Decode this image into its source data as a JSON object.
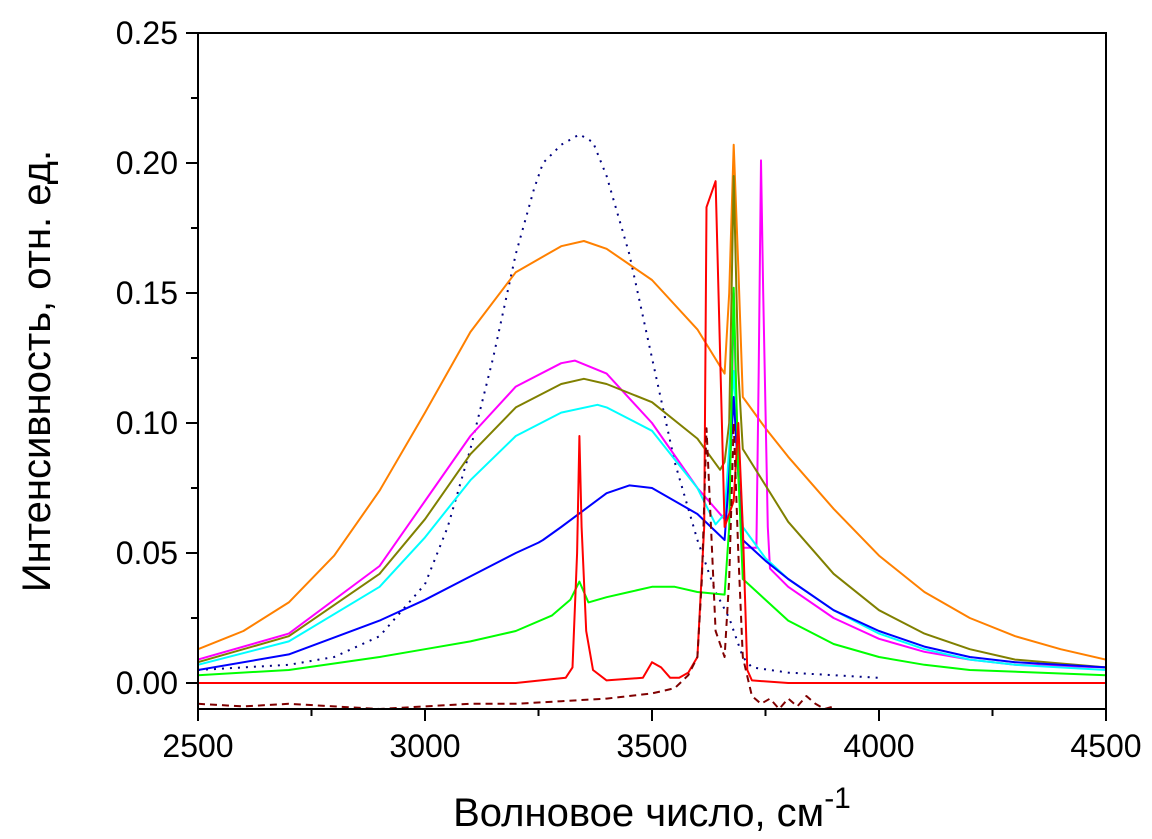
{
  "chart_data": {
    "type": "line",
    "xlabel": "Волновое число, см",
    "xlabel_superscript": "-1",
    "ylabel": "Интенсивность, отн. ед.",
    "xlim": [
      2500,
      4500
    ],
    "ylim": [
      -0.01,
      0.25
    ],
    "x_ticks": [
      2500,
      3000,
      3500,
      4000,
      4500
    ],
    "x_tick_labels": [
      "2500",
      "3000",
      "3500",
      "4000",
      "4500"
    ],
    "y_ticks": [
      0.0,
      0.05,
      0.1,
      0.15,
      0.2,
      0.25
    ],
    "y_tick_labels": [
      "0.00",
      "0.05",
      "0.10",
      "0.15",
      "0.20",
      "0.25"
    ],
    "grid": false,
    "legend": "none",
    "series": [
      {
        "color": "#000080",
        "style": "dotted",
        "points": [
          [
            2500,
            0.005
          ],
          [
            2700,
            0.007
          ],
          [
            2800,
            0.01
          ],
          [
            2900,
            0.018
          ],
          [
            3000,
            0.038
          ],
          [
            3050,
            0.06
          ],
          [
            3100,
            0.09
          ],
          [
            3150,
            0.125
          ],
          [
            3200,
            0.165
          ],
          [
            3240,
            0.19
          ],
          [
            3260,
            0.2
          ],
          [
            3300,
            0.207
          ],
          [
            3340,
            0.211
          ],
          [
            3370,
            0.208
          ],
          [
            3400,
            0.195
          ],
          [
            3450,
            0.165
          ],
          [
            3500,
            0.125
          ],
          [
            3550,
            0.085
          ],
          [
            3600,
            0.055
          ],
          [
            3640,
            0.035
          ],
          [
            3670,
            0.025
          ],
          [
            3690,
            0.015
          ],
          [
            3700,
            0.01
          ],
          [
            3720,
            0.006
          ],
          [
            3760,
            0.005
          ],
          [
            3800,
            0.004
          ],
          [
            3900,
            0.003
          ],
          [
            4000,
            0.002
          ]
        ]
      },
      {
        "color": "#ff8000",
        "style": "solid",
        "points": [
          [
            2500,
            0.013
          ],
          [
            2600,
            0.02
          ],
          [
            2700,
            0.031
          ],
          [
            2800,
            0.049
          ],
          [
            2900,
            0.074
          ],
          [
            3000,
            0.104
          ],
          [
            3100,
            0.135
          ],
          [
            3200,
            0.158
          ],
          [
            3300,
            0.168
          ],
          [
            3350,
            0.17
          ],
          [
            3400,
            0.167
          ],
          [
            3500,
            0.155
          ],
          [
            3600,
            0.136
          ],
          [
            3660,
            0.119
          ],
          [
            3670,
            0.15
          ],
          [
            3680,
            0.207
          ],
          [
            3690,
            0.16
          ],
          [
            3700,
            0.11
          ],
          [
            3750,
            0.098
          ],
          [
            3800,
            0.087
          ],
          [
            3900,
            0.067
          ],
          [
            4000,
            0.049
          ],
          [
            4100,
            0.035
          ],
          [
            4200,
            0.025
          ],
          [
            4300,
            0.018
          ],
          [
            4400,
            0.013
          ],
          [
            4500,
            0.009
          ]
        ]
      },
      {
        "color": "#ff00ff",
        "style": "solid",
        "points": [
          [
            2500,
            0.009
          ],
          [
            2700,
            0.019
          ],
          [
            2900,
            0.045
          ],
          [
            3000,
            0.07
          ],
          [
            3100,
            0.095
          ],
          [
            3200,
            0.114
          ],
          [
            3300,
            0.123
          ],
          [
            3330,
            0.124
          ],
          [
            3400,
            0.119
          ],
          [
            3500,
            0.1
          ],
          [
            3600,
            0.075
          ],
          [
            3660,
            0.063
          ],
          [
            3675,
            0.1
          ],
          [
            3680,
            0.15
          ],
          [
            3685,
            0.11
          ],
          [
            3700,
            0.052
          ],
          [
            3720,
            0.052
          ],
          [
            3730,
            0.052
          ],
          [
            3735,
            0.12
          ],
          [
            3740,
            0.201
          ],
          [
            3745,
            0.15
          ],
          [
            3755,
            0.06
          ],
          [
            3760,
            0.044
          ],
          [
            3800,
            0.037
          ],
          [
            3900,
            0.025
          ],
          [
            4000,
            0.017
          ],
          [
            4100,
            0.012
          ],
          [
            4200,
            0.009
          ],
          [
            4300,
            0.007
          ],
          [
            4500,
            0.006
          ]
        ]
      },
      {
        "color": "#808000",
        "style": "solid",
        "points": [
          [
            2500,
            0.008
          ],
          [
            2700,
            0.018
          ],
          [
            2900,
            0.042
          ],
          [
            3000,
            0.063
          ],
          [
            3100,
            0.088
          ],
          [
            3200,
            0.106
          ],
          [
            3300,
            0.115
          ],
          [
            3350,
            0.117
          ],
          [
            3400,
            0.115
          ],
          [
            3500,
            0.108
          ],
          [
            3600,
            0.094
          ],
          [
            3650,
            0.082
          ],
          [
            3660,
            0.085
          ],
          [
            3670,
            0.1
          ],
          [
            3680,
            0.195
          ],
          [
            3690,
            0.12
          ],
          [
            3700,
            0.09
          ],
          [
            3800,
            0.062
          ],
          [
            3900,
            0.042
          ],
          [
            4000,
            0.028
          ],
          [
            4100,
            0.019
          ],
          [
            4200,
            0.013
          ],
          [
            4300,
            0.009
          ],
          [
            4500,
            0.006
          ]
        ]
      },
      {
        "color": "#00ffff",
        "style": "solid",
        "points": [
          [
            2500,
            0.007
          ],
          [
            2700,
            0.016
          ],
          [
            2900,
            0.037
          ],
          [
            3000,
            0.056
          ],
          [
            3100,
            0.078
          ],
          [
            3200,
            0.095
          ],
          [
            3300,
            0.104
          ],
          [
            3380,
            0.107
          ],
          [
            3400,
            0.106
          ],
          [
            3500,
            0.097
          ],
          [
            3600,
            0.075
          ],
          [
            3640,
            0.061
          ],
          [
            3660,
            0.065
          ],
          [
            3670,
            0.09
          ],
          [
            3680,
            0.12
          ],
          [
            3690,
            0.09
          ],
          [
            3700,
            0.06
          ],
          [
            3750,
            0.048
          ],
          [
            3800,
            0.04
          ],
          [
            3900,
            0.028
          ],
          [
            4000,
            0.019
          ],
          [
            4100,
            0.013
          ],
          [
            4200,
            0.009
          ],
          [
            4300,
            0.007
          ],
          [
            4500,
            0.005
          ]
        ]
      },
      {
        "color": "#0000ff",
        "style": "solid",
        "points": [
          [
            2500,
            0.005
          ],
          [
            2700,
            0.011
          ],
          [
            2900,
            0.024
          ],
          [
            3000,
            0.032
          ],
          [
            3100,
            0.041
          ],
          [
            3200,
            0.05
          ],
          [
            3250,
            0.054
          ],
          [
            3260,
            0.055
          ],
          [
            3300,
            0.06
          ],
          [
            3400,
            0.073
          ],
          [
            3450,
            0.076
          ],
          [
            3500,
            0.075
          ],
          [
            3600,
            0.065
          ],
          [
            3660,
            0.055
          ],
          [
            3670,
            0.08
          ],
          [
            3680,
            0.11
          ],
          [
            3690,
            0.08
          ],
          [
            3700,
            0.055
          ],
          [
            3750,
            0.047
          ],
          [
            3800,
            0.04
          ],
          [
            3900,
            0.028
          ],
          [
            4000,
            0.02
          ],
          [
            4100,
            0.014
          ],
          [
            4200,
            0.01
          ],
          [
            4300,
            0.008
          ],
          [
            4500,
            0.006
          ]
        ]
      },
      {
        "color": "#00ff00",
        "style": "solid",
        "points": [
          [
            2500,
            0.003
          ],
          [
            2700,
            0.005
          ],
          [
            2900,
            0.01
          ],
          [
            3000,
            0.013
          ],
          [
            3100,
            0.016
          ],
          [
            3200,
            0.02
          ],
          [
            3280,
            0.026
          ],
          [
            3320,
            0.032
          ],
          [
            3340,
            0.039
          ],
          [
            3360,
            0.031
          ],
          [
            3400,
            0.033
          ],
          [
            3450,
            0.035
          ],
          [
            3500,
            0.037
          ],
          [
            3550,
            0.037
          ],
          [
            3600,
            0.035
          ],
          [
            3660,
            0.034
          ],
          [
            3670,
            0.06
          ],
          [
            3680,
            0.152
          ],
          [
            3690,
            0.08
          ],
          [
            3700,
            0.04
          ],
          [
            3800,
            0.024
          ],
          [
            3900,
            0.015
          ],
          [
            4000,
            0.01
          ],
          [
            4100,
            0.007
          ],
          [
            4200,
            0.005
          ],
          [
            4500,
            0.003
          ]
        ]
      },
      {
        "color": "#ff0000",
        "style": "solid",
        "points": [
          [
            2500,
            0.0
          ],
          [
            3200,
            0.0
          ],
          [
            3310,
            0.002
          ],
          [
            3325,
            0.006
          ],
          [
            3335,
            0.05
          ],
          [
            3340,
            0.095
          ],
          [
            3345,
            0.06
          ],
          [
            3355,
            0.02
          ],
          [
            3370,
            0.005
          ],
          [
            3400,
            0.001
          ],
          [
            3480,
            0.002
          ],
          [
            3500,
            0.008
          ],
          [
            3520,
            0.006
          ],
          [
            3540,
            0.002
          ],
          [
            3560,
            0.002
          ],
          [
            3580,
            0.004
          ],
          [
            3600,
            0.01
          ],
          [
            3615,
            0.06
          ],
          [
            3620,
            0.183
          ],
          [
            3640,
            0.193
          ],
          [
            3660,
            0.06
          ],
          [
            3680,
            0.07
          ],
          [
            3690,
            0.1
          ],
          [
            3700,
            0.06
          ],
          [
            3710,
            0.005
          ],
          [
            3720,
            0.001
          ],
          [
            3800,
            0.0
          ],
          [
            4500,
            0.0
          ]
        ]
      },
      {
        "color": "#800000",
        "style": "dashed",
        "points": [
          [
            2500,
            -0.008
          ],
          [
            2600,
            -0.009
          ],
          [
            2700,
            -0.008
          ],
          [
            2800,
            -0.009
          ],
          [
            2900,
            -0.01
          ],
          [
            3000,
            -0.009
          ],
          [
            3100,
            -0.008
          ],
          [
            3200,
            -0.008
          ],
          [
            3300,
            -0.007
          ],
          [
            3400,
            -0.006
          ],
          [
            3500,
            -0.004
          ],
          [
            3550,
            -0.002
          ],
          [
            3580,
            0.003
          ],
          [
            3600,
            0.01
          ],
          [
            3610,
            0.04
          ],
          [
            3620,
            0.098
          ],
          [
            3630,
            0.06
          ],
          [
            3640,
            0.02
          ],
          [
            3660,
            0.01
          ],
          [
            3670,
            0.04
          ],
          [
            3680,
            0.1
          ],
          [
            3690,
            0.05
          ],
          [
            3700,
            0.01
          ],
          [
            3720,
            -0.005
          ],
          [
            3740,
            -0.008
          ],
          [
            3760,
            -0.006
          ],
          [
            3780,
            -0.01
          ],
          [
            3800,
            -0.006
          ],
          [
            3820,
            -0.009
          ],
          [
            3840,
            -0.005
          ],
          [
            3860,
            -0.008
          ],
          [
            3880,
            -0.01
          ],
          [
            3900,
            -0.009
          ]
        ]
      }
    ]
  }
}
